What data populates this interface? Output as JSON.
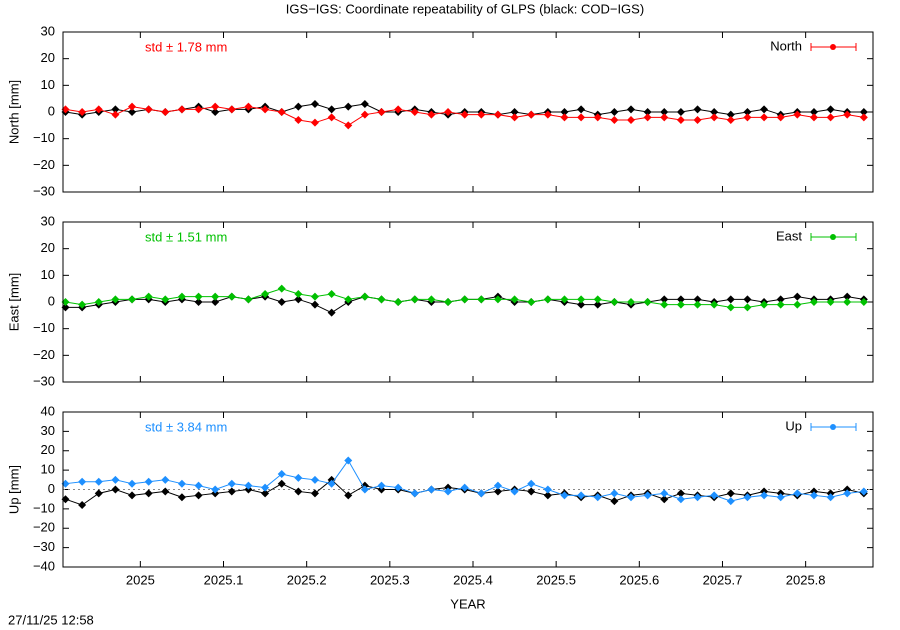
{
  "title": "IGS−IGS: Coordinate repeatability of GLPS (black: COD−IGS)",
  "timestamp": "27/11/25 12:58",
  "chart_data": [
    {
      "type": "line",
      "ylabel": "North [mm]",
      "annotation": "std ± 1.78 mm",
      "annotation_color": "#ff0000",
      "x": [
        2024.91,
        2024.93,
        2024.95,
        2024.97,
        2024.99,
        2025.01,
        2025.03,
        2025.05,
        2025.07,
        2025.09,
        2025.11,
        2025.13,
        2025.15,
        2025.17,
        2025.19,
        2025.21,
        2025.23,
        2025.25,
        2025.27,
        2025.29,
        2025.31,
        2025.33,
        2025.35,
        2025.37,
        2025.39,
        2025.41,
        2025.43,
        2025.45,
        2025.47,
        2025.49,
        2025.51,
        2025.53,
        2025.55,
        2025.57,
        2025.59,
        2025.61,
        2025.63,
        2025.65,
        2025.67,
        2025.69,
        2025.71,
        2025.73,
        2025.75,
        2025.77,
        2025.79,
        2025.81,
        2025.83,
        2025.85,
        2025.87
      ],
      "xlim": [
        2024.907,
        2025.881
      ],
      "xticks": [
        2025,
        2025.1,
        2025.2,
        2025.3,
        2025.4,
        2025.5,
        2025.6,
        2025.7,
        2025.8
      ],
      "ylim": [
        -30,
        30
      ],
      "yticks": [
        {
          "value": -30,
          "label": "−30"
        },
        {
          "value": -20,
          "label": "−20"
        },
        {
          "value": -10,
          "label": "−10"
        },
        0,
        10,
        20,
        30
      ],
      "series": [
        {
          "color": "#000000",
          "values": [
            0,
            -1,
            0,
            1,
            0,
            1,
            0,
            1,
            2,
            0,
            1,
            1,
            2,
            0,
            2,
            3,
            1,
            2,
            3,
            0,
            0,
            1,
            0,
            -1,
            0,
            0,
            -1,
            0,
            -1,
            0,
            0,
            1,
            -1,
            0,
            1,
            0,
            0,
            0,
            1,
            0,
            -1,
            0,
            1,
            -1,
            0,
            0,
            1,
            0,
            0
          ]
        },
        {
          "name": "North",
          "color": "#ff0000",
          "values": [
            1,
            0,
            1,
            -1,
            2,
            1,
            0,
            1,
            1,
            2,
            1,
            2,
            1,
            0,
            -3,
            -4,
            -2,
            -5,
            -1,
            0,
            1,
            0,
            -1,
            0,
            -1,
            -1,
            -1,
            -2,
            -1,
            -1,
            -2,
            -2,
            -2,
            -3,
            -3,
            -2,
            -2,
            -3,
            -3,
            -2,
            -3,
            -2,
            -2,
            -2,
            -1,
            -2,
            -2,
            -1,
            -2
          ]
        }
      ]
    },
    {
      "type": "line",
      "ylabel": "East [mm]",
      "annotation": "std ± 1.51 mm",
      "annotation_color": "#00c000",
      "x": [
        2024.91,
        2024.93,
        2024.95,
        2024.97,
        2024.99,
        2025.01,
        2025.03,
        2025.05,
        2025.07,
        2025.09,
        2025.11,
        2025.13,
        2025.15,
        2025.17,
        2025.19,
        2025.21,
        2025.23,
        2025.25,
        2025.27,
        2025.29,
        2025.31,
        2025.33,
        2025.35,
        2025.37,
        2025.39,
        2025.41,
        2025.43,
        2025.45,
        2025.47,
        2025.49,
        2025.51,
        2025.53,
        2025.55,
        2025.57,
        2025.59,
        2025.61,
        2025.63,
        2025.65,
        2025.67,
        2025.69,
        2025.71,
        2025.73,
        2025.75,
        2025.77,
        2025.79,
        2025.81,
        2025.83,
        2025.85,
        2025.87
      ],
      "xlim": [
        2024.907,
        2025.881
      ],
      "xticks": [
        2025,
        2025.1,
        2025.2,
        2025.3,
        2025.4,
        2025.5,
        2025.6,
        2025.7,
        2025.8
      ],
      "ylim": [
        -30,
        30
      ],
      "yticks": [
        {
          "value": -30,
          "label": "−30"
        },
        {
          "value": -20,
          "label": "−20"
        },
        {
          "value": -10,
          "label": "−10"
        },
        0,
        10,
        20,
        30
      ],
      "series": [
        {
          "color": "#000000",
          "values": [
            -2,
            -2,
            -1,
            0,
            1,
            1,
            0,
            1,
            0,
            0,
            2,
            1,
            2,
            0,
            1,
            -1,
            -4,
            0,
            2,
            1,
            0,
            1,
            0,
            0,
            1,
            1,
            2,
            0,
            0,
            1,
            0,
            -1,
            -1,
            0,
            -1,
            0,
            1,
            1,
            1,
            0,
            1,
            1,
            0,
            1,
            2,
            1,
            1,
            2,
            1
          ]
        },
        {
          "name": "East",
          "color": "#00c000",
          "values": [
            0,
            -1,
            0,
            1,
            1,
            2,
            1,
            2,
            2,
            2,
            2,
            1,
            3,
            5,
            3,
            2,
            3,
            1,
            2,
            1,
            0,
            1,
            1,
            0,
            1,
            1,
            1,
            1,
            0,
            1,
            1,
            1,
            1,
            0,
            0,
            0,
            -1,
            -1,
            -1,
            -1,
            -2,
            -2,
            -1,
            -1,
            -1,
            0,
            0,
            0,
            0
          ]
        }
      ]
    },
    {
      "type": "line",
      "ylabel": "Up [mm]",
      "xlabel": "YEAR",
      "zeroline": true,
      "annotation": "std ± 3.84 mm",
      "annotation_color": "#1e90ff",
      "x": [
        2024.91,
        2024.93,
        2024.95,
        2024.97,
        2024.99,
        2025.01,
        2025.03,
        2025.05,
        2025.07,
        2025.09,
        2025.11,
        2025.13,
        2025.15,
        2025.17,
        2025.19,
        2025.21,
        2025.23,
        2025.25,
        2025.27,
        2025.29,
        2025.31,
        2025.33,
        2025.35,
        2025.37,
        2025.39,
        2025.41,
        2025.43,
        2025.45,
        2025.47,
        2025.49,
        2025.51,
        2025.53,
        2025.55,
        2025.57,
        2025.59,
        2025.61,
        2025.63,
        2025.65,
        2025.67,
        2025.69,
        2025.71,
        2025.73,
        2025.75,
        2025.77,
        2025.79,
        2025.81,
        2025.83,
        2025.85,
        2025.87
      ],
      "xlim": [
        2024.907,
        2025.881
      ],
      "xticks": [
        2025,
        2025.1,
        2025.2,
        2025.3,
        2025.4,
        2025.5,
        2025.6,
        2025.7,
        2025.8
      ],
      "ylim": [
        -40,
        40
      ],
      "yticks": [
        {
          "value": -40,
          "label": "−40"
        },
        {
          "value": -30,
          "label": "−30"
        },
        {
          "value": -20,
          "label": "−20"
        },
        {
          "value": -10,
          "label": "−10"
        },
        0,
        10,
        20,
        30,
        40
      ],
      "series": [
        {
          "color": "#000000",
          "values": [
            -5,
            -8,
            -2,
            0,
            -3,
            -2,
            -1,
            -4,
            -3,
            -2,
            -1,
            0,
            -2,
            3,
            -1,
            -2,
            5,
            -3,
            2,
            0,
            0,
            -2,
            0,
            1,
            0,
            -2,
            -1,
            0,
            -1,
            -3,
            -2,
            -4,
            -3,
            -6,
            -3,
            -2,
            -5,
            -2,
            -3,
            -4,
            -2,
            -3,
            -1,
            -2,
            -3,
            -1,
            -2,
            0,
            -2
          ]
        },
        {
          "name": "Up",
          "color": "#1e90ff",
          "values": [
            3,
            4,
            4,
            5,
            3,
            4,
            5,
            3,
            2,
            0,
            3,
            2,
            1,
            8,
            6,
            5,
            3,
            15,
            0,
            2,
            1,
            -2,
            0,
            -1,
            1,
            -2,
            2,
            -1,
            3,
            0,
            -3,
            -3,
            -4,
            -2,
            -4,
            -3,
            -2,
            -5,
            -4,
            -3,
            -6,
            -4,
            -3,
            -4,
            -2,
            -3,
            -4,
            -2,
            -1
          ]
        }
      ]
    }
  ]
}
